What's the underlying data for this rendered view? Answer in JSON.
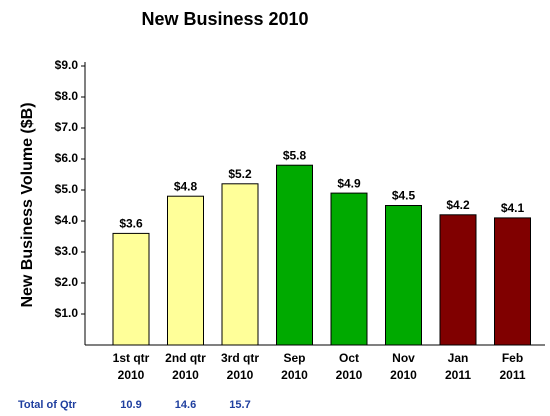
{
  "chart_data": {
    "type": "bar",
    "title": "New Business 2010",
    "y_label": "New Business Volume ($B)",
    "categories": [
      [
        "1st qtr",
        "2010"
      ],
      [
        "2nd qtr",
        "2010"
      ],
      [
        "3rd qtr",
        "2010"
      ],
      [
        "Sep",
        "2010"
      ],
      [
        "Oct",
        "2010"
      ],
      [
        "Nov",
        "2010"
      ],
      [
        "Jan",
        "2011"
      ],
      [
        "Feb",
        "2011"
      ]
    ],
    "values": [
      3.6,
      4.8,
      5.2,
      5.8,
      4.9,
      4.5,
      4.2,
      4.1
    ],
    "value_labels": [
      "$3.6",
      "$4.8",
      "$5.2",
      "$5.8",
      "$4.9",
      "$4.5",
      "$4.2",
      "$4.1"
    ],
    "colors": [
      "#ffff99",
      "#ffff99",
      "#ffff99",
      "#00aa00",
      "#00aa00",
      "#00aa00",
      "#800000",
      "#800000"
    ],
    "ylim": [
      0,
      9
    ],
    "yticks": [
      {
        "value": 1,
        "label": "$1.0"
      },
      {
        "value": 2,
        "label": "$2.0"
      },
      {
        "value": 3,
        "label": "$3.0"
      },
      {
        "value": 4,
        "label": "$4.0"
      },
      {
        "value": 5,
        "label": "$5.0"
      },
      {
        "value": 6,
        "label": "$6.0"
      },
      {
        "value": 7,
        "label": "$7.0"
      },
      {
        "value": 8,
        "label": "$8.0"
      },
      {
        "value": 9,
        "label": "$9.0"
      }
    ]
  },
  "footer": {
    "label": "Total of Qtr",
    "values": [
      "10.9",
      "14.6",
      "15.7"
    ]
  }
}
